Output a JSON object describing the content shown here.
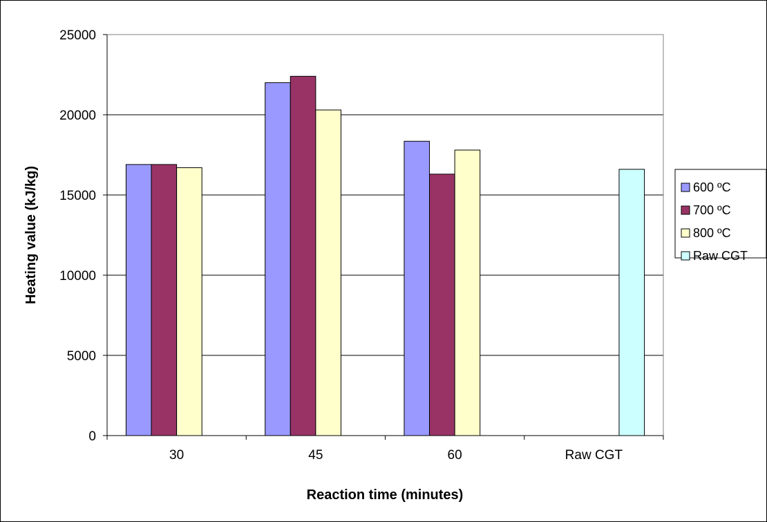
{
  "chart_data": {
    "type": "bar",
    "title": "",
    "xlabel": "Reaction time (minutes)",
    "ylabel": "Heating value (kJ/kg)",
    "ylim": [
      0,
      25000
    ],
    "yticks": [
      0,
      5000,
      10000,
      15000,
      20000,
      25000
    ],
    "y_tick_labels": [
      "0",
      "5000",
      "10000",
      "15000",
      "20000",
      "25000"
    ],
    "grid": "horizontal",
    "legend_position": "right",
    "categories": [
      "30",
      "45",
      "60",
      "Raw CGT"
    ],
    "series": [
      {
        "name": "600 ºC",
        "color": "#9999ff",
        "values": [
          16900,
          22000,
          18350,
          null
        ]
      },
      {
        "name": "700 ºC",
        "color": "#993366",
        "values": [
          16900,
          22400,
          16300,
          null
        ]
      },
      {
        "name": "800 ºC",
        "color": "#ffffcc",
        "values": [
          16700,
          20300,
          17800,
          null
        ]
      },
      {
        "name": "Raw CGT",
        "color": "#ccffff",
        "values": [
          null,
          null,
          null,
          16600
        ]
      }
    ]
  }
}
